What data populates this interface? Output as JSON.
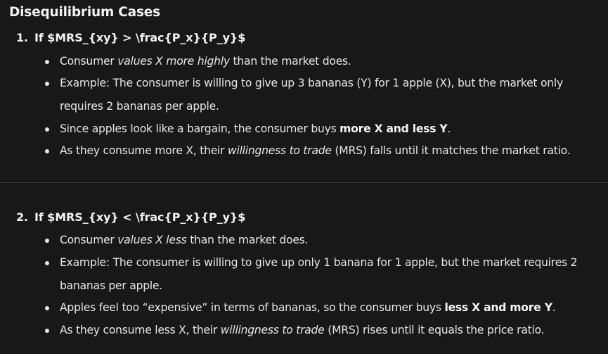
{
  "heading": "Disequilibrium Cases",
  "cases": [
    {
      "number": "1.",
      "title": "If $MRS_{xy} > \\frac{P_x}{P_y}$",
      "bullets": [
        {
          "a": "Consumer ",
          "em": "values X more highly",
          "b": " than the market does."
        },
        {
          "line1": "Example: The consumer is willing to give up 3 bananas (Y) for 1 apple (X), but the market only",
          "line2": "requires 2 bananas per apple."
        },
        {
          "a": "Since apples look like a bargain, the consumer buys ",
          "strong": "more X and less Y",
          "b": "."
        },
        {
          "a": "As they consume more X, their ",
          "em": "willingness to trade",
          "b": " (MRS) falls until it matches the market ratio."
        }
      ]
    },
    {
      "number": "2.",
      "title": "If $MRS_{xy} < \\frac{P_x}{P_y}$",
      "bullets": [
        {
          "a": "Consumer ",
          "em": "values X less",
          "b": " than the market does."
        },
        {
          "line1": "Example: The consumer is willing to give up only 1 banana for 1 apple, but the market requires 2",
          "line2": "bananas per apple."
        },
        {
          "a": "Apples feel too “expensive” in terms of bananas, so the consumer buys ",
          "strong": "less X and more Y",
          "b": "."
        },
        {
          "a": "As they consume less X, their ",
          "em": "willingness to trade",
          "b": " (MRS) rises until it equals the price ratio."
        }
      ]
    }
  ]
}
